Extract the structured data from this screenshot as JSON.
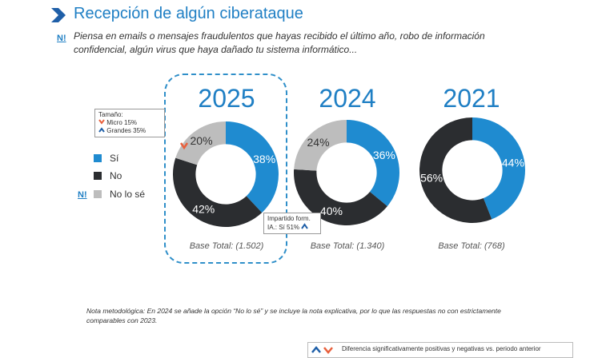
{
  "title": "Recepción de algún ciberataque",
  "question_mark": "N!",
  "question": "Piensa en emails o mensajes fraudulentos que hayas recibido el último año, robo de información confidencial, algún virus que haya dañado tu sistema informático...",
  "legend": {
    "mark": "N!",
    "items": [
      {
        "label": "Sí",
        "color": "#1f8bd0"
      },
      {
        "label": "No",
        "color": "#2b2d30"
      },
      {
        "label": "No lo sé",
        "color": "#bdbdbd"
      }
    ]
  },
  "callouts": {
    "size": {
      "title": "Tamaño:",
      "micro": "Micro 15%",
      "grandes": "Grandes 35%"
    },
    "ia": {
      "line1": "Impartido form.",
      "line2": "IA.: Sí 51%"
    }
  },
  "note": "Nota metodológica: En 2024 se añade la opción “No lo sé” y se incluye la nota explicativa, por lo que las respuestas no con estrictamente comparables con 2023.",
  "footer": "Diferencia significativamente positivas y negativas vs. periodo anterior",
  "colors": {
    "si": "#1f8bd0",
    "no": "#2b2d30",
    "nolose": "#bdbdbd",
    "up": "#1f5fa8",
    "down": "#e8603c"
  },
  "chart_data": [
    {
      "type": "pie",
      "title": "2025",
      "base": "Base Total: (1.502)",
      "categories": [
        "Sí",
        "No",
        "No lo sé"
      ],
      "values": [
        38,
        42,
        20
      ],
      "labels": [
        "38%",
        "42%",
        "20%"
      ]
    },
    {
      "type": "pie",
      "title": "2024",
      "base": "Base Total: (1.340)",
      "categories": [
        "Sí",
        "No",
        "No lo sé"
      ],
      "values": [
        36,
        40,
        24
      ],
      "labels": [
        "36%",
        "40%",
        "24%"
      ]
    },
    {
      "type": "pie",
      "title": "2021",
      "base": "Base Total: (768)",
      "categories": [
        "Sí",
        "No"
      ],
      "values": [
        44,
        56
      ],
      "labels": [
        "44%",
        "56%"
      ]
    }
  ]
}
